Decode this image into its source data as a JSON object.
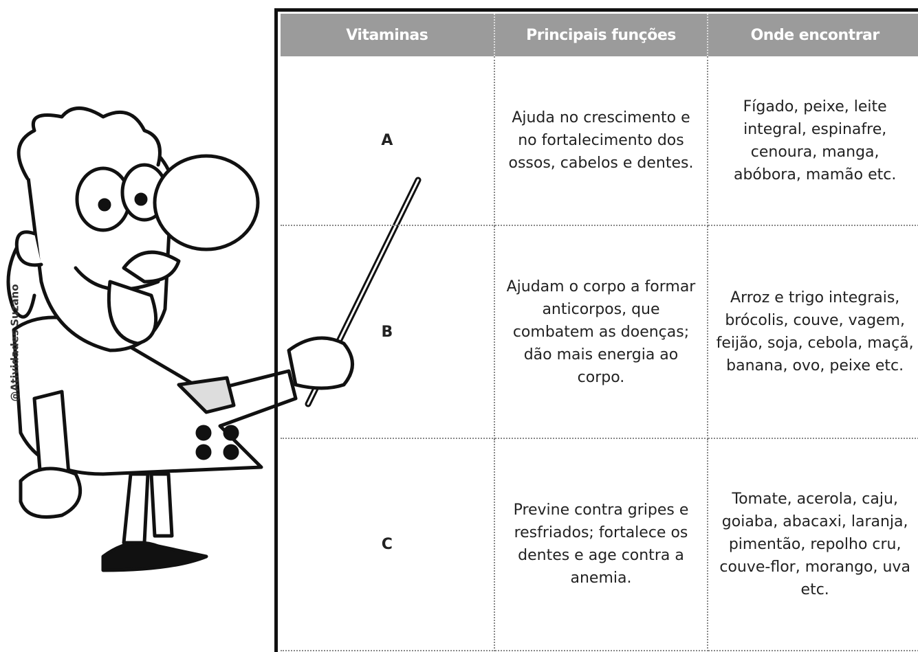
{
  "table": {
    "header": [
      "Vitaminas",
      "Principais funções",
      "Onde encontrar"
    ],
    "rows": [
      [
        "A",
        "Ajuda no crescimento e no fortalecimento dos ossos, cabelos e dentes.",
        "Fígado, peixe, leite integral, espinafre, cenoura, manga, abóbora, mamão etc."
      ],
      [
        "B",
        "Ajudam o corpo a formar anticorpos, que combatem as doenças; dão mais energia ao corpo.",
        "Arroz e trigo integrais, brócolis, couve, vagem, feijão, soja, cebola, maçã, banana, ovo, peixe etc."
      ],
      [
        "C",
        "Previne contra gripes e resfriados; fortalece os dentes e age contra a anemia.",
        "Tomate, acerola, caju, goiaba, abacaxi, laranja, pimentão, repolho cru, couve-flor, morango, uva etc."
      ]
    ]
  },
  "watermark": "@Atividades Suzano"
}
